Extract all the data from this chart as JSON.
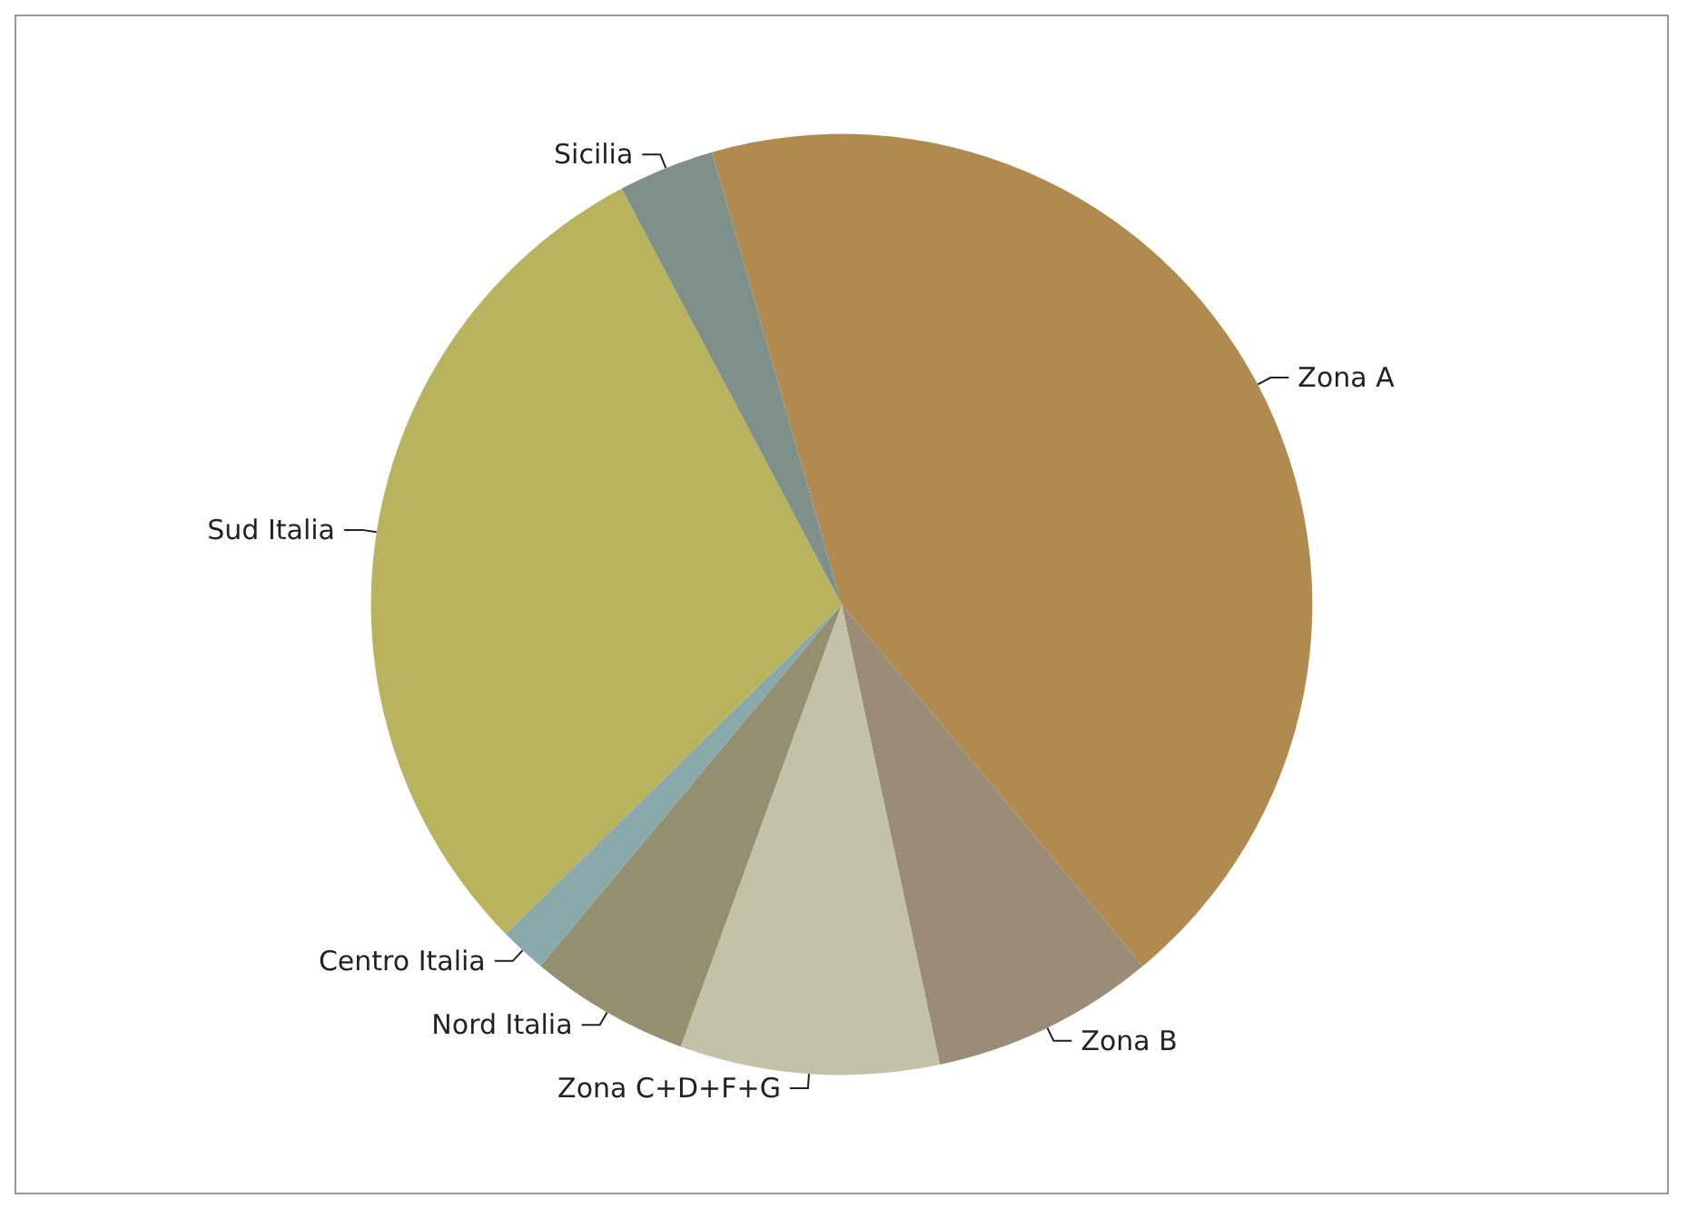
{
  "chart_data": {
    "type": "pie",
    "categories": [
      "Zona A",
      "Zona B",
      "Zona C+D+F+G",
      "Nord Italia",
      "Centro Italia",
      "Sud Italia",
      "Sicilia"
    ],
    "values": [
      43.4,
      7.7,
      8.9,
      5.5,
      1.6,
      29.6,
      3.3
    ],
    "colors": [
      "#b08a4e",
      "#9a8c76",
      "#c4c1a9",
      "#948f6e",
      "#8aa9ab",
      "#b9b35e",
      "#7f8f89"
    ],
    "legend": false
  }
}
